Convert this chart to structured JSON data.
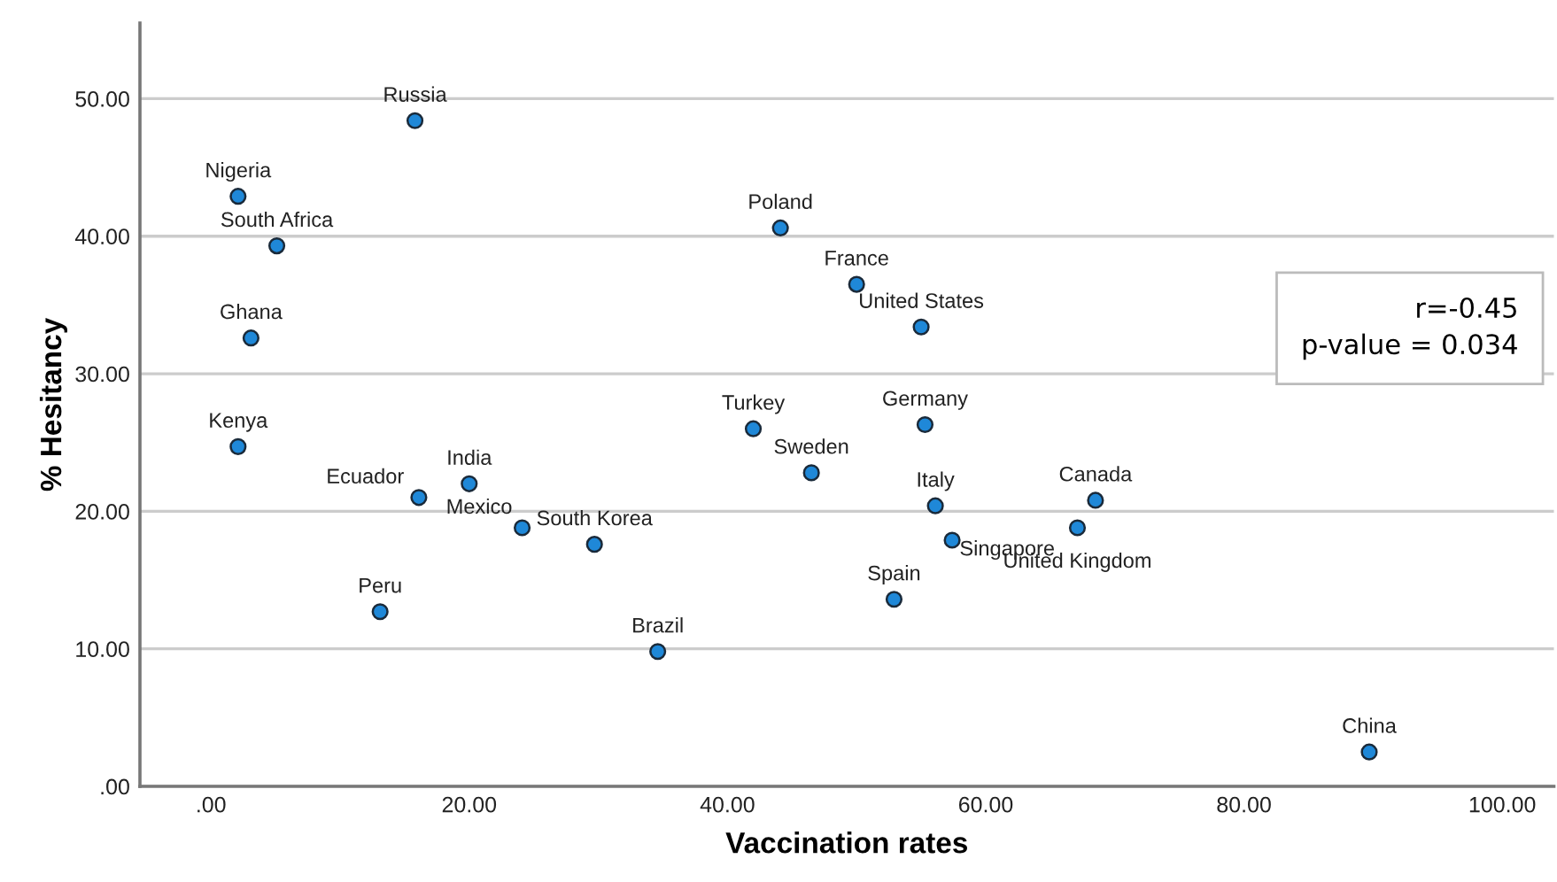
{
  "chart_data": {
    "type": "scatter",
    "xlabel": "Vaccination rates",
    "ylabel": "% Hesitancy",
    "x": [
      15.8,
      2.1,
      5.1,
      3.1,
      2.1,
      16.1,
      20.0,
      24.1,
      29.7,
      13.1,
      34.6,
      42.0,
      44.1,
      50.0,
      55.0,
      55.3,
      46.5,
      56.1,
      68.5,
      67.1,
      57.4,
      52.9,
      89.7
    ],
    "series": [
      {
        "color": "#1f88d8",
        "values": [
          48.4,
          42.9,
          39.3,
          32.6,
          24.7,
          21.0,
          22.0,
          18.8,
          17.6,
          12.7,
          9.8,
          26.0,
          40.6,
          36.5,
          33.4,
          26.3,
          22.8,
          20.4,
          20.8,
          18.8,
          17.9,
          13.6,
          2.5
        ]
      }
    ],
    "xlim": [
      -5.5,
      104
    ],
    "ylim": [
      0,
      55.5
    ],
    "xticks": [
      {
        "value": 0,
        "label": ".00"
      },
      {
        "value": 20,
        "label": "20.00"
      },
      {
        "value": 40,
        "label": "40.00"
      },
      {
        "value": 60,
        "label": "60.00"
      },
      {
        "value": 80,
        "label": "80.00"
      },
      {
        "value": 100,
        "label": "100.00"
      }
    ],
    "yticks": [
      {
        "value": 0,
        "label": ".00"
      },
      {
        "value": 10,
        "label": "10.00"
      },
      {
        "value": 20,
        "label": "20.00"
      },
      {
        "value": 30,
        "label": "30.00"
      },
      {
        "value": 40,
        "label": "40.00"
      },
      {
        "value": 50,
        "label": "50.00"
      }
    ],
    "grid": "y",
    "marker": "circle",
    "legend": false,
    "annotations": [
      {
        "text": "Russia",
        "x": 15.8,
        "y": 48.4
      },
      {
        "text": "Nigeria",
        "x": 2.1,
        "y": 42.9
      },
      {
        "text": "South Africa",
        "x": 5.1,
        "y": 39.3
      },
      {
        "text": "Ghana",
        "x": 3.1,
        "y": 32.6
      },
      {
        "text": "Kenya",
        "x": 2.1,
        "y": 24.7
      },
      {
        "text": "Ecuador",
        "x": 16.1,
        "y": 21.0
      },
      {
        "text": "India",
        "x": 20.0,
        "y": 22.0
      },
      {
        "text": "Mexico",
        "x": 24.1,
        "y": 18.8
      },
      {
        "text": "South Korea",
        "x": 29.7,
        "y": 17.6
      },
      {
        "text": "Peru",
        "x": 13.1,
        "y": 12.7
      },
      {
        "text": "Brazil",
        "x": 34.6,
        "y": 9.8
      },
      {
        "text": "Turkey",
        "x": 42.0,
        "y": 26.0
      },
      {
        "text": "Poland",
        "x": 44.1,
        "y": 40.6
      },
      {
        "text": "France",
        "x": 50.0,
        "y": 36.5
      },
      {
        "text": "United States",
        "x": 55.0,
        "y": 33.4
      },
      {
        "text": "Germany",
        "x": 55.3,
        "y": 26.3
      },
      {
        "text": "Sweden",
        "x": 46.5,
        "y": 22.8
      },
      {
        "text": "Italy",
        "x": 56.1,
        "y": 20.4
      },
      {
        "text": "Canada",
        "x": 68.5,
        "y": 20.8
      },
      {
        "text": "United Kingdom",
        "x": 67.1,
        "y": 18.8
      },
      {
        "text": "Singapore",
        "x": 57.4,
        "y": 17.9
      },
      {
        "text": "Spain",
        "x": 52.9,
        "y": 13.6
      },
      {
        "text": "China",
        "x": 89.7,
        "y": 2.5
      },
      "r=-0.45\np-value = 0.034"
    ]
  }
}
